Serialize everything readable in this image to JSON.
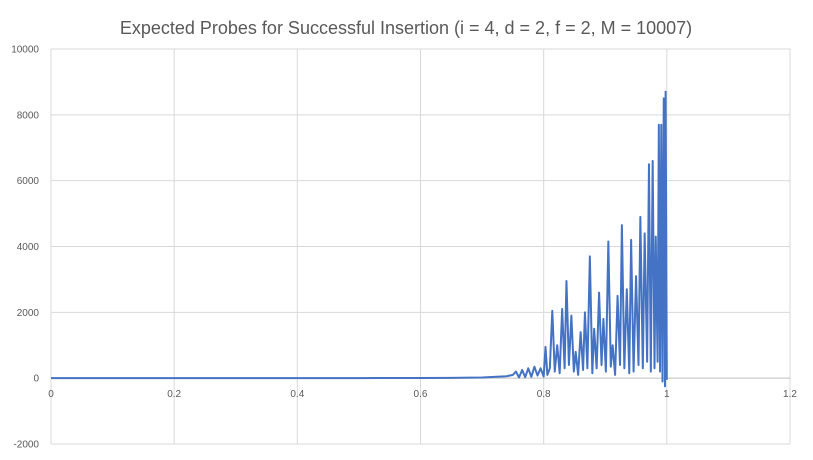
{
  "chart_data": {
    "type": "line",
    "title": "Expected Probes for Successful Insertion (i = 4, d = 2, f = 2, M = 10007)",
    "xlabel": "",
    "ylabel": "",
    "xlim": [
      0,
      1.2
    ],
    "ylim": [
      -2000,
      10000
    ],
    "x_ticks": [
      0,
      0.2,
      0.4,
      0.6,
      0.8,
      1,
      1.2
    ],
    "x_tick_labels": [
      "0",
      "0.2",
      "0.4",
      "0.6",
      "0.8",
      "1",
      "1.2"
    ],
    "y_ticks": [
      -2000,
      0,
      2000,
      4000,
      6000,
      8000,
      10000
    ],
    "y_tick_labels": [
      "-2000",
      "0",
      "2000",
      "4000",
      "6000",
      "8000",
      "10000"
    ],
    "grid": true,
    "legend": "none",
    "series": [
      {
        "color": "#4472C4",
        "points": [
          [
            0,
            1
          ],
          [
            0.1,
            1
          ],
          [
            0.2,
            1
          ],
          [
            0.3,
            2
          ],
          [
            0.4,
            2
          ],
          [
            0.5,
            3
          ],
          [
            0.55,
            4
          ],
          [
            0.6,
            6
          ],
          [
            0.65,
            10
          ],
          [
            0.7,
            20
          ],
          [
            0.72,
            40
          ],
          [
            0.74,
            60
          ],
          [
            0.75,
            100
          ],
          [
            0.755,
            200
          ],
          [
            0.76,
            20
          ],
          [
            0.765,
            250
          ],
          [
            0.77,
            30
          ],
          [
            0.775,
            300
          ],
          [
            0.78,
            40
          ],
          [
            0.785,
            350
          ],
          [
            0.79,
            80
          ],
          [
            0.795,
            300
          ],
          [
            0.8,
            50
          ],
          [
            0.803,
            950
          ],
          [
            0.806,
            100
          ],
          [
            0.81,
            300
          ],
          [
            0.814,
            2050
          ],
          [
            0.818,
            200
          ],
          [
            0.822,
            1000
          ],
          [
            0.826,
            150
          ],
          [
            0.83,
            2100
          ],
          [
            0.834,
            300
          ],
          [
            0.837,
            2950
          ],
          [
            0.841,
            400
          ],
          [
            0.845,
            1900
          ],
          [
            0.849,
            200
          ],
          [
            0.852,
            800
          ],
          [
            0.856,
            100
          ],
          [
            0.86,
            1400
          ],
          [
            0.864,
            250
          ],
          [
            0.867,
            2000
          ],
          [
            0.871,
            300
          ],
          [
            0.875,
            3700
          ],
          [
            0.879,
            150
          ],
          [
            0.882,
            1500
          ],
          [
            0.886,
            300
          ],
          [
            0.89,
            2600
          ],
          [
            0.894,
            400
          ],
          [
            0.897,
            1800
          ],
          [
            0.901,
            200
          ],
          [
            0.905,
            4150
          ],
          [
            0.909,
            350
          ],
          [
            0.912,
            1000
          ],
          [
            0.916,
            100
          ],
          [
            0.92,
            2500
          ],
          [
            0.924,
            400
          ],
          [
            0.927,
            4650
          ],
          [
            0.931,
            300
          ],
          [
            0.935,
            2700
          ],
          [
            0.939,
            150
          ],
          [
            0.942,
            4200
          ],
          [
            0.946,
            200
          ],
          [
            0.95,
            3100
          ],
          [
            0.954,
            400
          ],
          [
            0.957,
            4900
          ],
          [
            0.961,
            300
          ],
          [
            0.964,
            4400
          ],
          [
            0.968,
            500
          ],
          [
            0.971,
            6500
          ],
          [
            0.974,
            200
          ],
          [
            0.977,
            6600
          ],
          [
            0.98,
            300
          ],
          [
            0.982,
            4300
          ],
          [
            0.985,
            500
          ],
          [
            0.987,
            7700
          ],
          [
            0.989,
            200
          ],
          [
            0.991,
            7700
          ],
          [
            0.993,
            -100
          ],
          [
            0.995,
            8500
          ],
          [
            0.997,
            -250
          ],
          [
            0.998,
            8700
          ],
          [
            1,
            -50
          ]
        ]
      }
    ]
  }
}
